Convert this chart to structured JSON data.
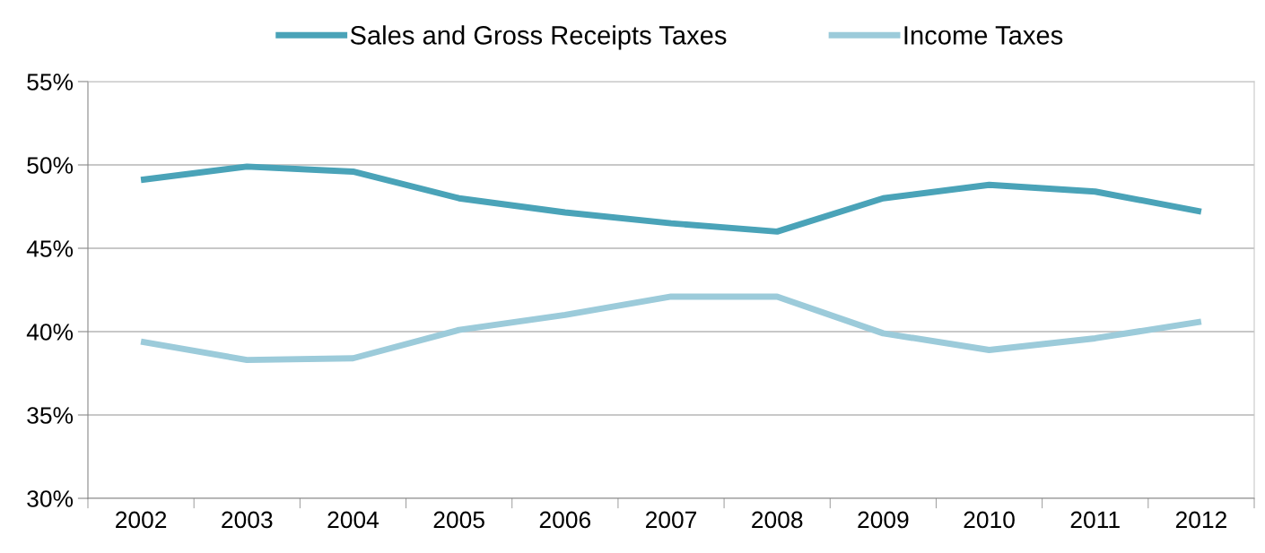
{
  "chart_data": {
    "type": "line",
    "categories": [
      "2002",
      "2003",
      "2004",
      "2005",
      "2006",
      "2007",
      "2008",
      "2009",
      "2010",
      "2011",
      "2012"
    ],
    "series": [
      {
        "name": "Sales and Gross Receipts Taxes",
        "color": "#4aa3b8",
        "values": [
          49.1,
          49.9,
          49.6,
          48.0,
          47.15,
          46.5,
          46.0,
          48.0,
          48.8,
          48.4,
          47.2
        ]
      },
      {
        "name": "Income Taxes",
        "color": "#9ccbda",
        "values": [
          39.4,
          38.3,
          38.4,
          40.1,
          41.0,
          42.1,
          42.1,
          39.9,
          38.9,
          39.6,
          40.6
        ]
      }
    ],
    "ylim": [
      30,
      55
    ],
    "yticks": [
      {
        "value": 30,
        "label": "30%"
      },
      {
        "value": 35,
        "label": "35%"
      },
      {
        "value": 40,
        "label": "40%"
      },
      {
        "value": 45,
        "label": "45%"
      },
      {
        "value": 50,
        "label": "50%"
      },
      {
        "value": 55,
        "label": "55%"
      }
    ],
    "grid": "y",
    "legend": "top",
    "marker": "none",
    "line_style": "solid"
  }
}
